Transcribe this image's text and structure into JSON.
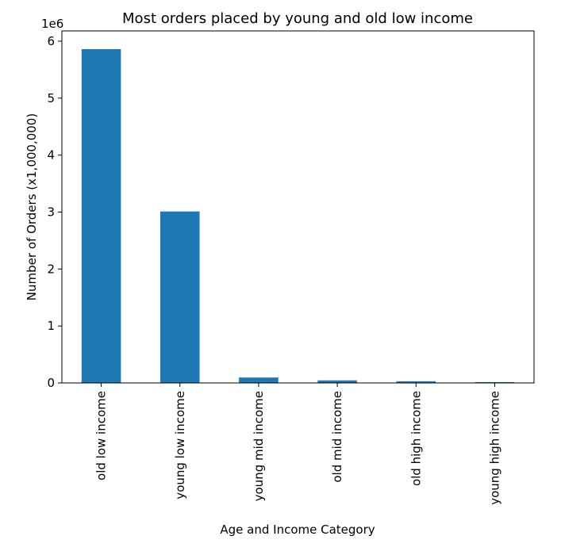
{
  "chart_data": {
    "type": "bar",
    "title": "Most orders placed by young and old low income",
    "xlabel": "Age and Income Category",
    "ylabel": "Number of Orders (x1,000,000)",
    "y_offset_label": "1e6",
    "categories": [
      "old low income",
      "young low income",
      "young mid income",
      "old mid income",
      "old high income",
      "young high income"
    ],
    "values": [
      5860000,
      3010000,
      95000,
      45000,
      30000,
      15000
    ],
    "ylim": [
      0,
      6180000
    ],
    "yticks": [
      0,
      1000000,
      2000000,
      3000000,
      4000000,
      5000000,
      6000000
    ],
    "ytick_labels": [
      "0",
      "1",
      "2",
      "3",
      "4",
      "5",
      "6"
    ],
    "bar_color": "#1f77b4",
    "grid": false,
    "legend": "none"
  }
}
